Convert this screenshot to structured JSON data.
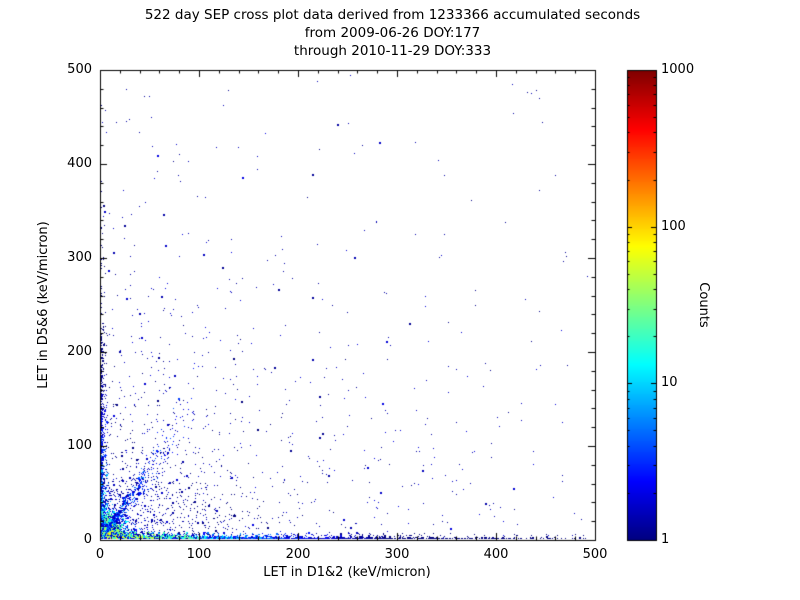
{
  "chart_data": {
    "type": "scatter",
    "title_lines": [
      "522 day SEP cross plot data derived from 1233366 accumulated seconds",
      "from 2009-06-26 DOY:177",
      "through 2010-11-29 DOY:333"
    ],
    "xlabel": "LET in D1&2 (keV/micron)",
    "ylabel": "LET in D5&6 (keV/micron)",
    "xlim": [
      0,
      500
    ],
    "ylim": [
      0,
      500
    ],
    "x_tick_labels": [
      "0",
      "100",
      "200",
      "300",
      "400",
      "500"
    ],
    "y_tick_labels": [
      "0",
      "100",
      "200",
      "300",
      "400",
      "500"
    ],
    "grid": false,
    "background": "#ffffff",
    "frame_color": "#000000",
    "colorbar": {
      "label": "Counts",
      "scale": "log",
      "range": [
        1,
        1000
      ],
      "tick_labels": [
        "1000",
        "100",
        "10",
        "1"
      ],
      "colormap": "jet",
      "stops": [
        {
          "t": 0.0,
          "c": "#00007f"
        },
        {
          "t": 0.125,
          "c": "#0000ff"
        },
        {
          "t": 0.375,
          "c": "#00ffff"
        },
        {
          "t": 0.625,
          "c": "#ffff00"
        },
        {
          "t": 0.875,
          "c": "#ff0000"
        },
        {
          "t": 1.0,
          "c": "#7f0000"
        }
      ]
    },
    "point_color_rule": "jet(log10(count)/3)",
    "seed": 20091233,
    "clusters": [
      {
        "name": "origin-core",
        "type": "blob",
        "n": 3200,
        "x": {
          "dist": "exp",
          "scale": 8,
          "max": 55
        },
        "y": {
          "dist": "exp",
          "scale": 8,
          "max": 55
        },
        "count": {
          "base": 300,
          "falloff": "r",
          "scale": 12
        }
      },
      {
        "name": "bottom-band",
        "type": "blob",
        "n": 3200,
        "x": {
          "dist": "exp",
          "scale": 120,
          "max": 492
        },
        "y": {
          "dist": "exp",
          "scale": 2,
          "max": 8
        },
        "count": {
          "base": 120,
          "falloff": "x",
          "scale": 60
        }
      },
      {
        "name": "left-band",
        "type": "blob",
        "n": 1000,
        "x": {
          "dist": "exp",
          "scale": 2,
          "max": 8
        },
        "y": {
          "dist": "exp",
          "scale": 75,
          "max": 480
        },
        "count": {
          "base": 40,
          "falloff": "y",
          "scale": 50
        }
      },
      {
        "name": "diagonal-track",
        "type": "track",
        "n": 550,
        "x0": 6,
        "x_scale": 28,
        "x_max": 96,
        "slope": 1.5,
        "spread": 0.4,
        "count": {
          "base": 12,
          "falloff": "x",
          "scale": 70
        }
      },
      {
        "name": "lower-left-fan",
        "type": "blob",
        "n": 800,
        "x": {
          "dist": "exp",
          "scale": 55,
          "max": 300
        },
        "y": {
          "dist": "exp",
          "scale": 45,
          "max": 260
        },
        "count": {
          "base": 3,
          "falloff": "r",
          "scale": 100
        }
      },
      {
        "name": "wide-sparse",
        "type": "blob",
        "n": 650,
        "x": {
          "dist": "exp",
          "scale": 160,
          "max": 495
        },
        "y": {
          "dist": "exp",
          "scale": 140,
          "max": 495
        },
        "count": {
          "base": 2,
          "falloff": "none",
          "scale": 1
        }
      },
      {
        "name": "uniform-sparse",
        "type": "blob",
        "n": 110,
        "x": {
          "dist": "uniform",
          "min": 0,
          "max": 495
        },
        "y": {
          "dist": "uniform",
          "min": 0,
          "max": 492
        },
        "count": {
          "base": 1.5,
          "falloff": "none",
          "scale": 1
        }
      }
    ]
  }
}
